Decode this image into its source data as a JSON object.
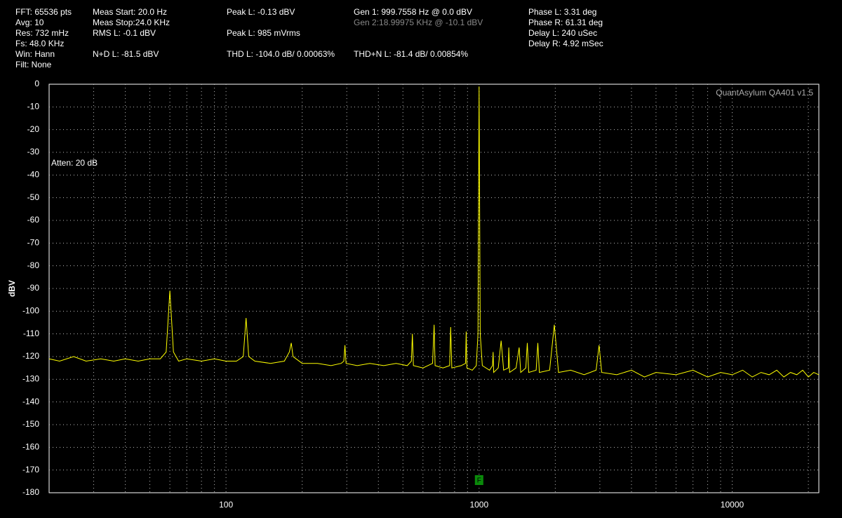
{
  "header": [
    [
      "FFT: 65536 pts",
      "Avg: 10",
      "Res: 732 mHz",
      "Fs: 48.0 KHz",
      "Win: Hann",
      "Filt: None"
    ],
    [
      "Meas Start: 20.0 Hz",
      "Meas Stop:24.0 KHz",
      "RMS L: -0.1 dBV",
      "N+D L: -81.5 dBV"
    ],
    [
      "Peak L: -0.13 dBV",
      "Peak L: 985 mVrms",
      "THD L: -104.0 dB/ 0.00063%"
    ],
    [
      "Gen 1: 999.7558 Hz @ 0.0  dBV",
      "Gen 2:18.99975 KHz @ -10.1  dBV",
      "THD+N L: -81.4 dB/ 0.00854%"
    ],
    [
      "Phase L: 3.31 deg",
      "Phase R: 61.31 deg",
      "Delay L: 240 uSec",
      "Delay R: 4.92 mSec"
    ]
  ],
  "chart_data": {
    "type": "line",
    "ylabel": "dBV",
    "watermark": "QuantAsylum QA401 v1.5",
    "annotation": "Atten: 20 dB",
    "marker": "F",
    "xscale": "log",
    "grid": true,
    "xlim": [
      20,
      22000
    ],
    "ylim": [
      -180,
      0
    ],
    "xticks": [
      100,
      1000,
      10000
    ],
    "x_minor_grid": [
      30,
      40,
      50,
      60,
      70,
      80,
      90,
      200,
      300,
      400,
      500,
      600,
      700,
      800,
      900,
      2000,
      3000,
      4000,
      5000,
      6000,
      7000,
      8000,
      9000,
      20000
    ],
    "yticks": [
      0,
      -10,
      -20,
      -30,
      -40,
      -50,
      -60,
      -70,
      -80,
      -90,
      -100,
      -110,
      -120,
      -130,
      -140,
      -150,
      -160,
      -170,
      -180
    ],
    "marker_x": 1000,
    "series": [
      {
        "name": "L",
        "color": "#ffff00",
        "x": [
          20,
          22,
          25,
          28,
          32,
          36,
          40,
          45,
          50,
          55,
          58,
          60,
          62,
          65,
          70,
          80,
          90,
          100,
          110,
          117,
          120,
          123,
          130,
          150,
          170,
          178,
          181,
          184,
          200,
          230,
          260,
          285,
          292,
          295,
          298,
          330,
          370,
          420,
          470,
          520,
          540,
          545,
          550,
          600,
          655,
          664,
          670,
          720,
          765,
          772,
          780,
          850,
          884,
          889,
          895,
          940,
          975,
          990,
          1000,
          1010,
          1030,
          1100,
          1130,
          1136,
          1142,
          1190,
          1222,
          1250,
          1305,
          1310,
          1320,
          1400,
          1440,
          1460,
          1530,
          1550,
          1570,
          1680,
          1706,
          1730,
          1900,
          1983,
          2060,
          2300,
          2600,
          2900,
          2980,
          3050,
          3500,
          4000,
          4500,
          5000,
          6000,
          7000,
          8000,
          9000,
          10000,
          11000,
          12000,
          13000,
          14000,
          15000,
          16000,
          17000,
          18000,
          19000,
          20000,
          21000,
          22000
        ],
        "values": [
          -121,
          -122,
          -120,
          -122,
          -121,
          -122,
          -121,
          -122,
          -121,
          -121,
          -118,
          -91,
          -118,
          -122,
          -121,
          -122,
          -121,
          -122,
          -122,
          -120,
          -103,
          -120,
          -122,
          -123,
          -122,
          -118,
          -114,
          -120,
          -123,
          -123,
          -124,
          -123,
          -122,
          -115,
          -123,
          -124,
          -123,
          -124,
          -123,
          -124,
          -122,
          -110,
          -124,
          -125,
          -123,
          -106,
          -124,
          -125,
          -124,
          -107,
          -125,
          -124,
          -123,
          -109,
          -125,
          -126,
          -124,
          -110,
          -1,
          -110,
          -124,
          -126,
          -124,
          -118,
          -127,
          -125,
          -113,
          -126,
          -125,
          -116,
          -127,
          -125,
          -116,
          -127,
          -125,
          -114,
          -127,
          -126,
          -114,
          -127,
          -126,
          -106,
          -127,
          -126,
          -128,
          -126,
          -115,
          -127,
          -128,
          -126,
          -129,
          -127,
          -128,
          -126,
          -129,
          -127,
          -128,
          -126,
          -129,
          -127,
          -128,
          -126,
          -129,
          -127,
          -128,
          -126,
          -129,
          -127,
          -128
        ]
      }
    ]
  }
}
